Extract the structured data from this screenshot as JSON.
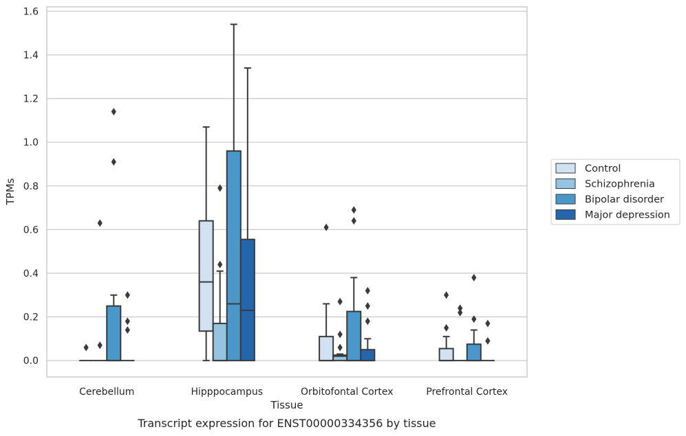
{
  "chart_data": {
    "type": "box",
    "caption": "Transcript expression for ENST00000334356 by tissue",
    "xlabel": "Tissue",
    "ylabel": "TPMs",
    "ylim": [
      -0.075,
      1.62
    ],
    "yticks": [
      0.0,
      0.2,
      0.4,
      0.6,
      0.8,
      1.0,
      1.2,
      1.4,
      1.6
    ],
    "ytick_labels": [
      "0.0",
      "0.2",
      "0.4",
      "0.6",
      "0.8",
      "1.0",
      "1.2",
      "1.4",
      "1.6"
    ],
    "grid": "horizontal",
    "legend_position": "right",
    "categories": [
      "Cerebellum",
      "Hipppocampus",
      "Orbitofontal Cortex",
      "Prefrontal Cortex"
    ],
    "series": [
      {
        "name": "Control",
        "color": "#d0e1f2",
        "boxes": [
          {
            "q1": 0,
            "median": 0,
            "q3": 0,
            "whisker_low": 0,
            "whisker_high": 0,
            "outliers": [
              0.06
            ]
          },
          {
            "q1": 0.135,
            "median": 0.36,
            "q3": 0.64,
            "whisker_low": 0,
            "whisker_high": 1.07,
            "outliers": []
          },
          {
            "q1": 0,
            "median": 0,
            "q3": 0.11,
            "whisker_low": 0,
            "whisker_high": 0.26,
            "outliers": [
              0.61
            ]
          },
          {
            "q1": 0,
            "median": 0,
            "q3": 0.055,
            "whisker_low": 0,
            "whisker_high": 0.11,
            "outliers": [
              0.15,
              0.3
            ]
          }
        ]
      },
      {
        "name": "Schizophrenia",
        "color": "#94c4df",
        "boxes": [
          {
            "q1": 0,
            "median": 0,
            "q3": 0,
            "whisker_low": 0,
            "whisker_high": 0,
            "outliers": [
              0.07,
              0.63
            ]
          },
          {
            "q1": 0,
            "median": 0,
            "q3": 0.17,
            "whisker_low": 0,
            "whisker_high": 0.41,
            "outliers": [
              0.44,
              0.79
            ]
          },
          {
            "q1": 0,
            "median": 0.02,
            "q3": 0.025,
            "whisker_low": 0,
            "whisker_high": 0.03,
            "outliers": [
              0.06,
              0.12,
              0.27
            ]
          },
          {
            "q1": 0,
            "median": 0,
            "q3": 0,
            "whisker_low": 0,
            "whisker_high": 0,
            "outliers": [
              0.22,
              0.24
            ]
          }
        ]
      },
      {
        "name": "Bipolar disorder",
        "color": "#4a98c9",
        "boxes": [
          {
            "q1": 0,
            "median": 0,
            "q3": 0.25,
            "whisker_low": 0,
            "whisker_high": 0.3,
            "outliers": [
              0.91,
              1.14
            ]
          },
          {
            "q1": 0,
            "median": 0.26,
            "q3": 0.96,
            "whisker_low": 0,
            "whisker_high": 1.54,
            "outliers": []
          },
          {
            "q1": 0,
            "median": 0,
            "q3": 0.225,
            "whisker_low": 0,
            "whisker_high": 0.38,
            "outliers": [
              0.64,
              0.69
            ]
          },
          {
            "q1": 0,
            "median": 0,
            "q3": 0.075,
            "whisker_low": 0,
            "whisker_high": 0.14,
            "outliers": [
              0.19,
              0.38
            ]
          }
        ]
      },
      {
        "name": "Major depression",
        "color": "#2366ac",
        "boxes": [
          {
            "q1": 0,
            "median": 0,
            "q3": 0,
            "whisker_low": 0,
            "whisker_high": 0,
            "outliers": [
              0.14,
              0.18,
              0.3
            ]
          },
          {
            "q1": 0,
            "median": 0.23,
            "q3": 0.555,
            "whisker_low": 0,
            "whisker_high": 1.34,
            "outliers": []
          },
          {
            "q1": 0,
            "median": 0,
            "q3": 0.05,
            "whisker_low": 0,
            "whisker_high": 0.1,
            "outliers": [
              0.18,
              0.25,
              0.32
            ]
          },
          {
            "q1": 0,
            "median": 0,
            "q3": 0,
            "whisker_low": 0,
            "whisker_high": 0,
            "outliers": [
              0.09,
              0.17
            ]
          }
        ]
      }
    ]
  },
  "legend": {
    "items": [
      {
        "label": "Control",
        "color": "#d0e1f2"
      },
      {
        "label": "Schizophrenia",
        "color": "#94c4df"
      },
      {
        "label": "Bipolar disorder",
        "color": "#4a98c9"
      },
      {
        "label": "Major depression",
        "color": "#2366ac"
      }
    ]
  }
}
